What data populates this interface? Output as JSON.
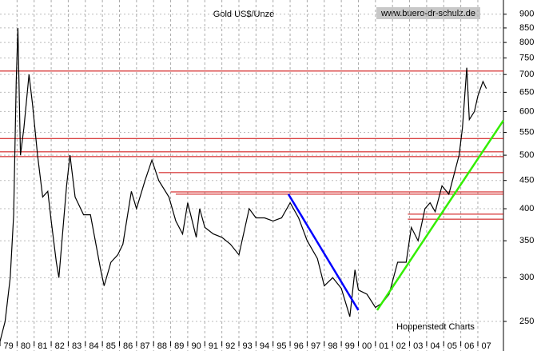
{
  "chart_data": {
    "type": "line",
    "title": "Gold US$/Unze",
    "watermark": "www.buero-dr-schulz.de",
    "source": "Hoppenstedt Charts",
    "log_scale": true,
    "grid": true,
    "color": "#000000",
    "xlim": [
      1979,
      2008.5
    ],
    "xticks": [
      {
        "value": 1979,
        "label": "79"
      },
      {
        "value": 1980,
        "label": "80"
      },
      {
        "value": 1981,
        "label": "81"
      },
      {
        "value": 1982,
        "label": "82"
      },
      {
        "value": 1983,
        "label": "83"
      },
      {
        "value": 1984,
        "label": "84"
      },
      {
        "value": 1985,
        "label": "85"
      },
      {
        "value": 1986,
        "label": "86"
      },
      {
        "value": 1987,
        "label": "87"
      },
      {
        "value": 1988,
        "label": "88"
      },
      {
        "value": 1989,
        "label": "89"
      },
      {
        "value": 1990,
        "label": "90"
      },
      {
        "value": 1991,
        "label": "91"
      },
      {
        "value": 1992,
        "label": "92"
      },
      {
        "value": 1993,
        "label": "93"
      },
      {
        "value": 1994,
        "label": "94"
      },
      {
        "value": 1995,
        "label": "95"
      },
      {
        "value": 1996,
        "label": "96"
      },
      {
        "value": 1997,
        "label": "97"
      },
      {
        "value": 1998,
        "label": "98"
      },
      {
        "value": 1999,
        "label": "99"
      },
      {
        "value": 2000,
        "label": "00"
      },
      {
        "value": 2001,
        "label": "01"
      },
      {
        "value": 2002,
        "label": "02"
      },
      {
        "value": 2003,
        "label": "03"
      },
      {
        "value": 2004,
        "label": "04"
      },
      {
        "value": 2005,
        "label": "05"
      },
      {
        "value": 2006,
        "label": "06"
      },
      {
        "value": 2007,
        "label": "07"
      }
    ],
    "ylim": [
      221,
      955
    ],
    "yticks": [
      250,
      300,
      350,
      400,
      450,
      500,
      550,
      600,
      650,
      700,
      750,
      800,
      850,
      900
    ],
    "x": [
      1979.0,
      1979.3,
      1979.6,
      1979.8,
      1979.95,
      1980.05,
      1980.2,
      1980.4,
      1980.7,
      1980.9,
      1981.2,
      1981.5,
      1981.8,
      1982.0,
      1982.3,
      1982.45,
      1982.9,
      1983.1,
      1983.4,
      1983.9,
      1984.3,
      1984.9,
      1985.1,
      1985.5,
      1985.9,
      1986.2,
      1986.7,
      1987.0,
      1987.5,
      1987.9,
      1988.3,
      1988.9,
      1989.3,
      1989.7,
      1990.0,
      1990.5,
      1990.7,
      1991.0,
      1991.5,
      1992.0,
      1992.5,
      1993.0,
      1993.6,
      1994.0,
      1994.5,
      1995.0,
      1995.5,
      1996.0,
      1996.5,
      1997.0,
      1997.6,
      1998.0,
      1998.5,
      1999.0,
      1999.5,
      1999.8,
      2000.0,
      2000.5,
      2001.0,
      2001.4,
      2001.8,
      2002.3,
      2002.8,
      2003.1,
      2003.5,
      2003.9,
      2004.2,
      2004.5,
      2004.9,
      2005.3,
      2005.9,
      2006.1,
      2006.35,
      2006.5,
      2006.8,
      2007.0,
      2007.3,
      2007.5
    ],
    "values": [
      230,
      250,
      300,
      390,
      680,
      850,
      500,
      560,
      700,
      620,
      500,
      420,
      430,
      380,
      320,
      300,
      440,
      500,
      420,
      390,
      390,
      310,
      290,
      320,
      330,
      345,
      430,
      400,
      450,
      490,
      450,
      420,
      380,
      360,
      410,
      355,
      400,
      370,
      360,
      355,
      345,
      330,
      400,
      385,
      385,
      380,
      385,
      410,
      385,
      350,
      325,
      290,
      300,
      287,
      255,
      310,
      285,
      280,
      265,
      270,
      280,
      320,
      320,
      370,
      350,
      400,
      410,
      395,
      440,
      425,
      500,
      560,
      720,
      580,
      600,
      640,
      680,
      660
    ],
    "levels": [
      {
        "value": 710,
        "from": 1979,
        "color": "#cc0000"
      },
      {
        "value": 536,
        "from": 1979,
        "color": "#cc0000"
      },
      {
        "value": 507,
        "from": 1979,
        "color": "#cc0000"
      },
      {
        "value": 497,
        "from": 1979,
        "color": "#cc0000"
      },
      {
        "value": 465,
        "from": 1988.3,
        "color": "#cc0000"
      },
      {
        "value": 429,
        "from": 1989.0,
        "color": "#cc0000"
      },
      {
        "value": 425,
        "from": 1989.3,
        "color": "#cc0000"
      },
      {
        "value": 391,
        "from": 2002.9,
        "color": "#cc0000"
      },
      {
        "value": 383,
        "from": 2002.9,
        "color": "#cc0000"
      }
    ],
    "trendlines": [
      {
        "x": [
          1995.9,
          2000.0
        ],
        "values": [
          425,
          262
        ],
        "color": "#0000ff"
      },
      {
        "x": [
          2001.1,
          2008.5
        ],
        "values": [
          262,
          578
        ],
        "color": "#33ee00"
      }
    ]
  }
}
